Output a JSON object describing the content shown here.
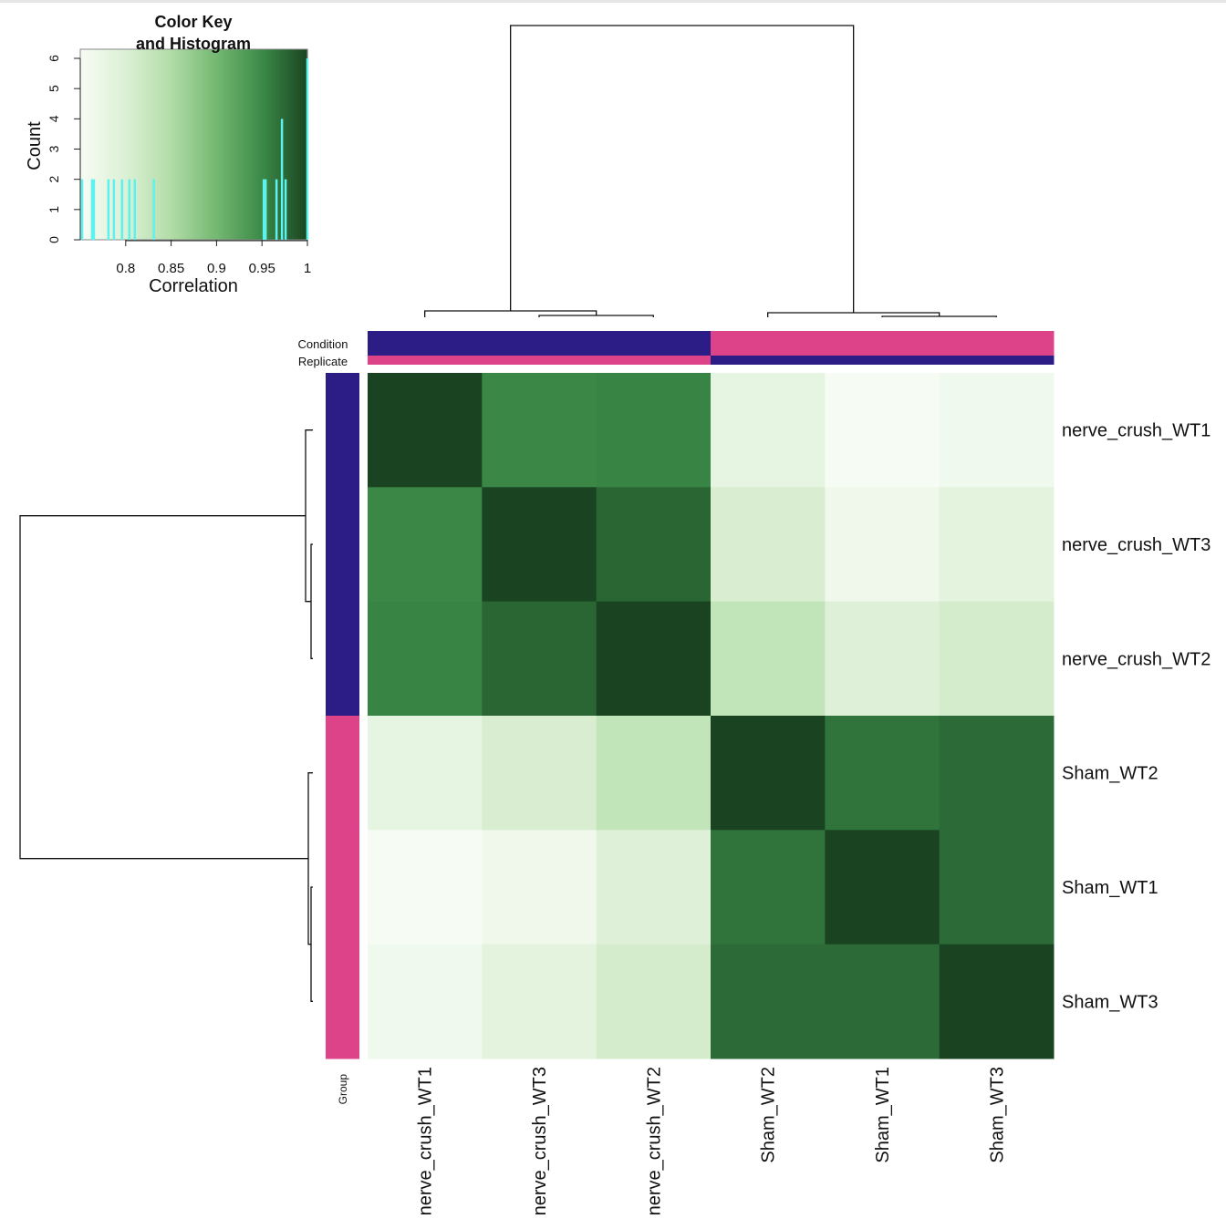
{
  "chart_data": {
    "type": "heatmap",
    "title": "",
    "labels": [
      "nerve_crush_WT1",
      "nerve_crush_WT3",
      "nerve_crush_WT2",
      "Sham_WT2",
      "Sham_WT1",
      "Sham_WT3"
    ],
    "values": [
      [
        1.0,
        0.952,
        0.954,
        0.781,
        0.752,
        0.763
      ],
      [
        0.952,
        1.0,
        0.976,
        0.804,
        0.765,
        0.787
      ],
      [
        0.954,
        0.976,
        1.0,
        0.831,
        0.796,
        0.81
      ],
      [
        0.781,
        0.804,
        0.831,
        1.0,
        0.966,
        0.972
      ],
      [
        0.752,
        0.765,
        0.796,
        0.966,
        1.0,
        0.972
      ],
      [
        0.763,
        0.787,
        0.81,
        0.972,
        0.972,
        1.0
      ]
    ],
    "color_scale": {
      "min": 0.75,
      "max": 1.0,
      "colors": [
        "#f7fcf5",
        "#dcf0d5",
        "#b2dca8",
        "#74b872",
        "#3b8a48",
        "#1a4421"
      ]
    },
    "annotations": {
      "column_tracks": [
        {
          "name": "Condition",
          "values": [
            "nc",
            "nc",
            "nc",
            "sham",
            "sham",
            "sham"
          ]
        },
        {
          "name": "Replicate",
          "values": [
            "a",
            "a",
            "a",
            "b",
            "b",
            "b"
          ]
        }
      ],
      "row_track": {
        "name": "Group",
        "values": [
          "nc",
          "nc",
          "nc",
          "sham",
          "sham",
          "sham"
        ]
      },
      "track_colors": {
        "nc": "#2b1d85",
        "sham": "#dc4389",
        "a": "#dc4389",
        "b": "#2b1d85"
      }
    },
    "color_key": {
      "title_line1": "Color Key",
      "title_line2": "and Histogram",
      "xlabel": "Correlation",
      "ylabel": "Count",
      "xlim": [
        0.75,
        1.0
      ],
      "ylim": [
        0,
        6
      ],
      "xticks": [
        "0.8",
        "0.85",
        "0.9",
        "0.95",
        "1"
      ],
      "xtick_values": [
        0.8,
        0.85,
        0.9,
        0.95,
        1.0
      ],
      "yticks": [
        "0",
        "1",
        "2",
        "3",
        "4",
        "5",
        "6"
      ],
      "histogram_color": "#5cf2ef",
      "histogram": [
        {
          "x": 0.752,
          "count": 2
        },
        {
          "x": 0.763,
          "count": 2
        },
        {
          "x": 0.765,
          "count": 2
        },
        {
          "x": 0.781,
          "count": 2
        },
        {
          "x": 0.787,
          "count": 2
        },
        {
          "x": 0.796,
          "count": 2
        },
        {
          "x": 0.804,
          "count": 2
        },
        {
          "x": 0.81,
          "count": 2
        },
        {
          "x": 0.831,
          "count": 2
        },
        {
          "x": 0.952,
          "count": 2
        },
        {
          "x": 0.954,
          "count": 2
        },
        {
          "x": 0.966,
          "count": 2
        },
        {
          "x": 0.972,
          "count": 4
        },
        {
          "x": 0.976,
          "count": 2
        },
        {
          "x": 1.0,
          "count": 6
        }
      ]
    }
  }
}
